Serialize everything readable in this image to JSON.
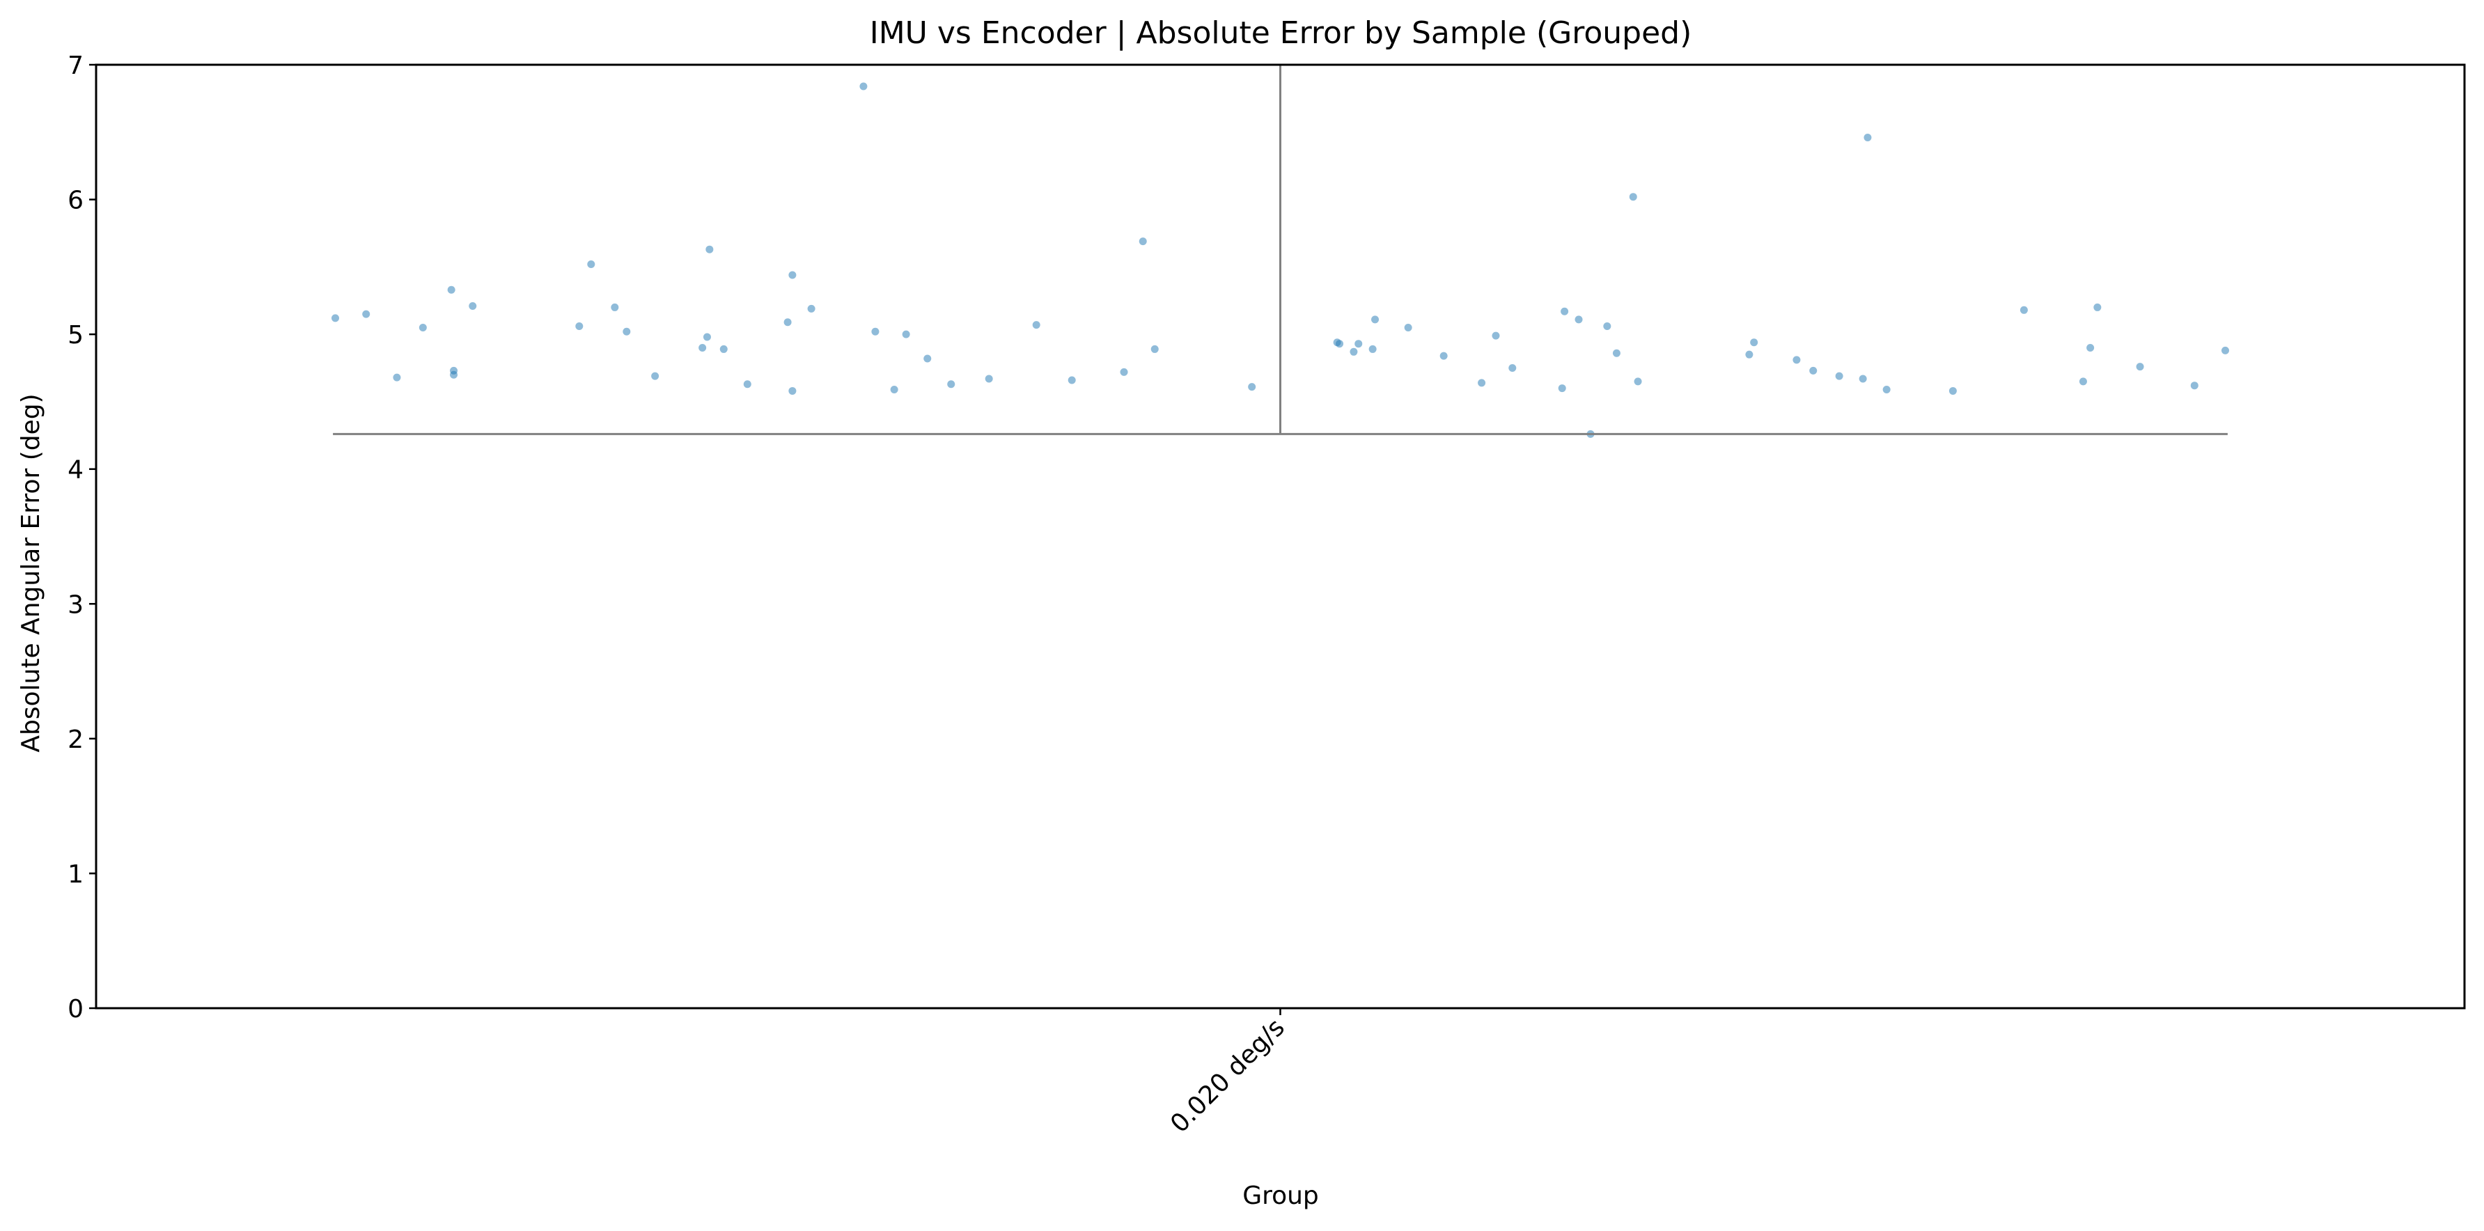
{
  "chart_data": {
    "type": "scatter",
    "title": "IMU vs Encoder | Absolute Error by Sample (Grouped)",
    "xlabel": "Group",
    "ylabel": "Absolute Angular Error (deg)",
    "categories": [
      "0.020 deg/s"
    ],
    "ylim": [
      0,
      7
    ],
    "yticks": [
      0,
      1,
      2,
      3,
      4,
      5,
      6,
      7
    ],
    "xlim": [
      -0.5,
      0.5
    ],
    "grid": false,
    "point_color": "#1f77b4",
    "point_alpha": 0.5,
    "line_color": "#808080",
    "min_value": 4.26,
    "points": [
      {
        "x": -0.399,
        "y": 5.12
      },
      {
        "x": -0.386,
        "y": 5.15
      },
      {
        "x": -0.373,
        "y": 4.68
      },
      {
        "x": -0.362,
        "y": 5.05
      },
      {
        "x": -0.35,
        "y": 5.33
      },
      {
        "x": -0.349,
        "y": 4.73
      },
      {
        "x": -0.349,
        "y": 4.7
      },
      {
        "x": -0.341,
        "y": 5.21
      },
      {
        "x": -0.296,
        "y": 5.06
      },
      {
        "x": -0.291,
        "y": 5.52
      },
      {
        "x": -0.281,
        "y": 5.2
      },
      {
        "x": -0.276,
        "y": 5.02
      },
      {
        "x": -0.264,
        "y": 4.69
      },
      {
        "x": -0.244,
        "y": 4.9
      },
      {
        "x": -0.242,
        "y": 4.98
      },
      {
        "x": -0.241,
        "y": 5.63
      },
      {
        "x": -0.235,
        "y": 4.89
      },
      {
        "x": -0.225,
        "y": 4.63
      },
      {
        "x": -0.208,
        "y": 5.09
      },
      {
        "x": -0.206,
        "y": 5.44
      },
      {
        "x": -0.206,
        "y": 4.58
      },
      {
        "x": -0.198,
        "y": 5.19
      },
      {
        "x": -0.176,
        "y": 6.84
      },
      {
        "x": -0.171,
        "y": 5.02
      },
      {
        "x": -0.163,
        "y": 4.59
      },
      {
        "x": -0.158,
        "y": 5.0
      },
      {
        "x": -0.149,
        "y": 4.82
      },
      {
        "x": -0.139,
        "y": 4.63
      },
      {
        "x": -0.123,
        "y": 4.67
      },
      {
        "x": -0.103,
        "y": 5.07
      },
      {
        "x": -0.088,
        "y": 4.66
      },
      {
        "x": -0.066,
        "y": 4.72
      },
      {
        "x": -0.058,
        "y": 5.69
      },
      {
        "x": -0.053,
        "y": 4.89
      },
      {
        "x": -0.012,
        "y": 4.61
      },
      {
        "x": 0.024,
        "y": 4.94
      },
      {
        "x": 0.025,
        "y": 4.93
      },
      {
        "x": 0.031,
        "y": 4.87
      },
      {
        "x": 0.033,
        "y": 4.93
      },
      {
        "x": 0.039,
        "y": 4.89
      },
      {
        "x": 0.04,
        "y": 5.11
      },
      {
        "x": 0.054,
        "y": 5.05
      },
      {
        "x": 0.069,
        "y": 4.84
      },
      {
        "x": 0.085,
        "y": 4.64
      },
      {
        "x": 0.091,
        "y": 4.99
      },
      {
        "x": 0.098,
        "y": 4.75
      },
      {
        "x": 0.119,
        "y": 4.6
      },
      {
        "x": 0.12,
        "y": 5.17
      },
      {
        "x": 0.126,
        "y": 5.11
      },
      {
        "x": 0.131,
        "y": 4.26
      },
      {
        "x": 0.138,
        "y": 5.06
      },
      {
        "x": 0.142,
        "y": 4.86
      },
      {
        "x": 0.149,
        "y": 6.02
      },
      {
        "x": 0.151,
        "y": 4.65
      },
      {
        "x": 0.198,
        "y": 4.85
      },
      {
        "x": 0.2,
        "y": 4.94
      },
      {
        "x": 0.218,
        "y": 4.81
      },
      {
        "x": 0.225,
        "y": 4.73
      },
      {
        "x": 0.236,
        "y": 4.69
      },
      {
        "x": 0.246,
        "y": 4.67
      },
      {
        "x": 0.248,
        "y": 6.46
      },
      {
        "x": 0.256,
        "y": 4.59
      },
      {
        "x": 0.284,
        "y": 4.58
      },
      {
        "x": 0.314,
        "y": 5.18
      },
      {
        "x": 0.339,
        "y": 4.65
      },
      {
        "x": 0.342,
        "y": 4.9
      },
      {
        "x": 0.345,
        "y": 5.2
      },
      {
        "x": 0.363,
        "y": 4.76
      },
      {
        "x": 0.386,
        "y": 4.62
      },
      {
        "x": 0.399,
        "y": 4.88
      }
    ]
  }
}
